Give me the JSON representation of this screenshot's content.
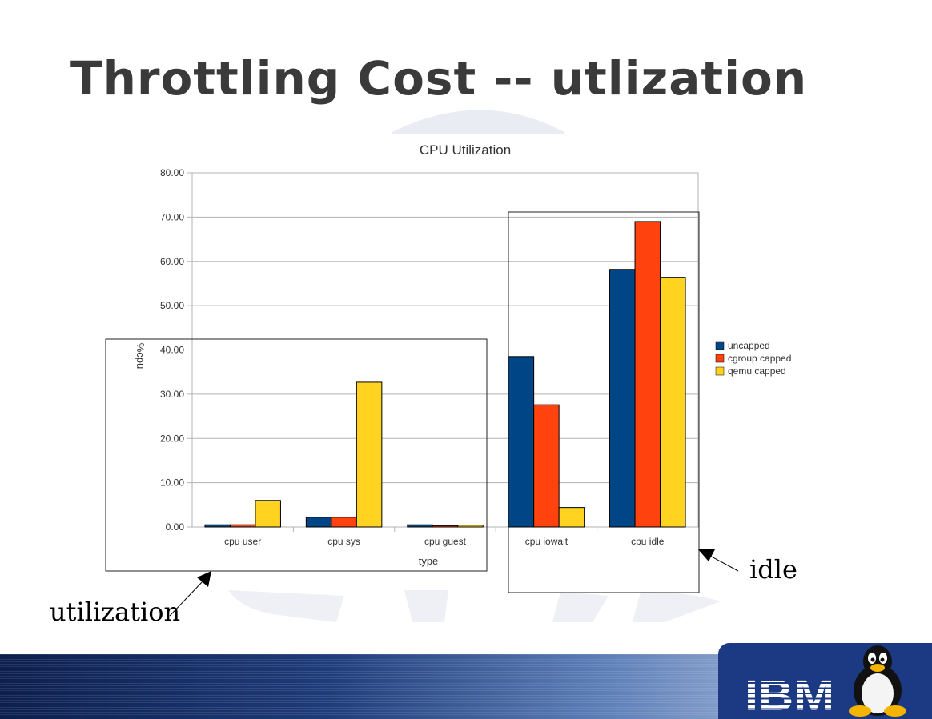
{
  "title": "Throttling Cost -- utlization",
  "annotations": {
    "utilization": "utilization",
    "idle": "idle"
  },
  "logo": {
    "text": "IBM"
  },
  "colors": {
    "uncapped": "#004586",
    "cgroup_capped": "#ff420e",
    "qemu_capped": "#ffd320",
    "title": "#3a3a3a",
    "footer": "#1c3a84"
  },
  "chart_data": {
    "type": "bar",
    "title": "CPU Utilization",
    "xlabel": "type",
    "ylabel": "%cpu",
    "categories": [
      "cpu user",
      "cpu sys",
      "cpu guest",
      "cpu iowait",
      "cpu idle"
    ],
    "series": [
      {
        "name": "uncapped",
        "values": [
          0.5,
          2.2,
          0.5,
          38.5,
          58.2
        ]
      },
      {
        "name": "cgroup capped",
        "values": [
          0.5,
          2.2,
          0.3,
          27.6,
          69.0
        ]
      },
      {
        "name": "qemu capped",
        "values": [
          6.0,
          32.7,
          0.4,
          4.4,
          56.4
        ]
      }
    ],
    "ylim": [
      0,
      80
    ],
    "yticks": [
      "0.00",
      "10.00",
      "20.00",
      "30.00",
      "40.00",
      "50.00",
      "60.00",
      "70.00",
      "80.00"
    ],
    "grid": true,
    "legend": "right"
  }
}
